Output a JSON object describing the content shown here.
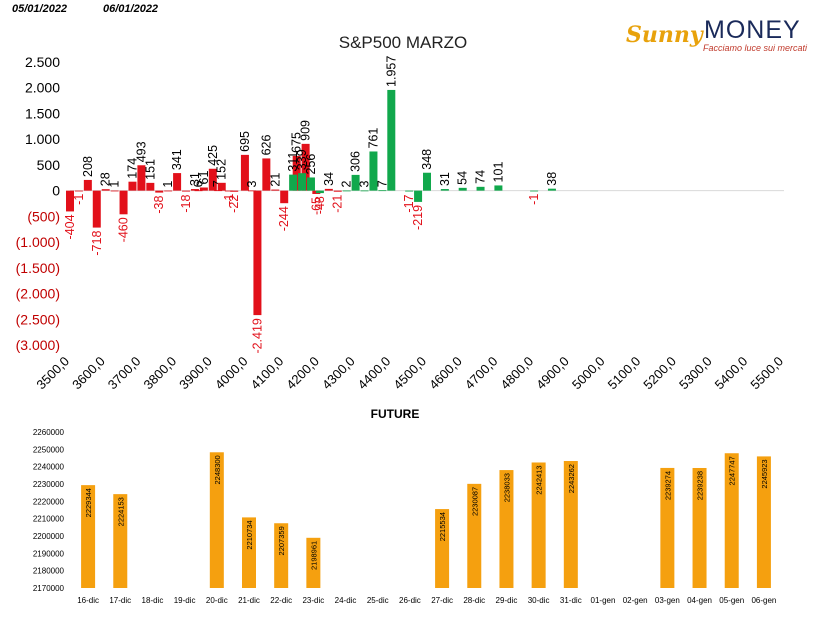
{
  "header": {
    "date_left": "05/01/2022",
    "date_right": "06/01/2022"
  },
  "logo": {
    "brand_prefix": "Sunny",
    "brand_name": "MONEY",
    "tagline": "Facciamo luce sui mercati"
  },
  "colors": {
    "positive": "#11a84c",
    "negative": "#e2101a",
    "future_bar": "#f5a00f"
  },
  "chart_data": [
    {
      "type": "bar",
      "title": "S&P500 MARZO",
      "xlabel": "",
      "ylabel": "",
      "ylim": [
        -3000,
        2500
      ],
      "yticks": [
        2500,
        2000,
        1500,
        1000,
        500,
        0,
        -500,
        -1000,
        -1500,
        -2000,
        -2500,
        -3000
      ],
      "ytick_labels": [
        "2.500",
        "2.000",
        "1.500",
        "1.000",
        "500",
        "0",
        "(500)",
        "(1.000)",
        "(1.500)",
        "(2.000)",
        "(2.500)",
        "(3.000)"
      ],
      "xlim": [
        3500,
        5500
      ],
      "xtick_labels": [
        "3500,0",
        "3600,0",
        "3700,0",
        "3800,0",
        "3900,0",
        "4000,0",
        "4100,0",
        "4200,0",
        "4300,0",
        "4400,0",
        "4500,0",
        "4600,0",
        "4700,0",
        "4800,0",
        "4900,0",
        "5000,0",
        "5100,0",
        "5200,0",
        "5300,0",
        "5400,0",
        "5500,0"
      ],
      "series": [
        {
          "color_key": "negative",
          "points": [
            {
              "x": 3500,
              "y": -404,
              "label": "-404"
            },
            {
              "x": 3525,
              "y": -1,
              "label": "-1"
            },
            {
              "x": 3550,
              "y": 208,
              "label": "208"
            },
            {
              "x": 3575,
              "y": -718,
              "label": "-718"
            },
            {
              "x": 3600,
              "y": 28,
              "label": "28"
            },
            {
              "x": 3625,
              "y": 1,
              "label": "1"
            },
            {
              "x": 3650,
              "y": -460,
              "label": "-460"
            },
            {
              "x": 3675,
              "y": 174,
              "label": "174"
            },
            {
              "x": 3700,
              "y": 493,
              "label": "493"
            },
            {
              "x": 3725,
              "y": 151,
              "label": "151"
            },
            {
              "x": 3750,
              "y": -38,
              "label": "-38"
            },
            {
              "x": 3775,
              "y": 1,
              "label": "1"
            },
            {
              "x": 3800,
              "y": 341,
              "label": "341"
            },
            {
              "x": 3825,
              "y": -18,
              "label": "-18"
            },
            {
              "x": 3850,
              "y": 31,
              "label": "31"
            },
            {
              "x": 3860,
              "y": 6,
              "label": "6"
            },
            {
              "x": 3875,
              "y": 61,
              "label": "61"
            },
            {
              "x": 3900,
              "y": 425,
              "label": "425"
            },
            {
              "x": 3915,
              "y": 7,
              "label": "7"
            },
            {
              "x": 3925,
              "y": 152,
              "label": "152"
            },
            {
              "x": 3945,
              "y": -1,
              "label": "-1"
            },
            {
              "x": 3960,
              "y": -22,
              "label": "-22"
            },
            {
              "x": 3990,
              "y": 695,
              "label": "695"
            },
            {
              "x": 4010,
              "y": 3,
              "label": "3"
            },
            {
              "x": 4025,
              "y": -2419,
              "label": "-2.419"
            },
            {
              "x": 4050,
              "y": 626,
              "label": "626"
            },
            {
              "x": 4075,
              "y": 21,
              "label": "21"
            },
            {
              "x": 4100,
              "y": -244,
              "label": "-244"
            },
            {
              "x": 4135,
              "y": 675,
              "label": "675"
            },
            {
              "x": 4160,
              "y": 909,
              "label": "909"
            },
            {
              "x": 4190,
              "y": -65,
              "label": "-65"
            },
            {
              "x": 4225,
              "y": 34,
              "label": "34"
            },
            {
              "x": 4250,
              "y": -21,
              "label": "-21"
            }
          ]
        },
        {
          "color_key": "positive",
          "points": [
            {
              "x": 4125,
              "y": 311,
              "label": "311"
            },
            {
              "x": 4150,
              "y": 339,
              "label": "339"
            },
            {
              "x": 4175,
              "y": 256,
              "label": "256"
            },
            {
              "x": 4200,
              "y": -48,
              "label": "-48"
            },
            {
              "x": 4275,
              "y": 2,
              "label": "2"
            },
            {
              "x": 4300,
              "y": 306,
              "label": "306"
            },
            {
              "x": 4325,
              "y": 3,
              "label": "3"
            },
            {
              "x": 4350,
              "y": 761,
              "label": "761"
            },
            {
              "x": 4375,
              "y": 7,
              "label": "7"
            },
            {
              "x": 4400,
              "y": 1957,
              "label": "1.957"
            },
            {
              "x": 4450,
              "y": -17,
              "label": "-17"
            },
            {
              "x": 4475,
              "y": -219,
              "label": "-219"
            },
            {
              "x": 4500,
              "y": 348,
              "label": "348"
            },
            {
              "x": 4550,
              "y": 31,
              "label": "31"
            },
            {
              "x": 4600,
              "y": 54,
              "label": "54"
            },
            {
              "x": 4650,
              "y": 74,
              "label": "74"
            },
            {
              "x": 4700,
              "y": 101,
              "label": "101"
            },
            {
              "x": 4800,
              "y": -1,
              "label": "-1"
            },
            {
              "x": 4850,
              "y": 38,
              "label": "38"
            }
          ]
        }
      ]
    },
    {
      "type": "bar",
      "title": "FUTURE",
      "xlabel": "",
      "ylabel": "",
      "ylim": [
        2170000,
        2260000
      ],
      "yticks": [
        2260000,
        2250000,
        2240000,
        2230000,
        2220000,
        2210000,
        2200000,
        2190000,
        2180000,
        2170000
      ],
      "ytick_labels": [
        "2260000",
        "2250000",
        "2240000",
        "2230000",
        "2220000",
        "2210000",
        "2200000",
        "2190000",
        "2180000",
        "2170000"
      ],
      "categories": [
        "16-dic",
        "17-dic",
        "18-dic",
        "19-dic",
        "20-dic",
        "21-dic",
        "22-dic",
        "23-dic",
        "24-dic",
        "25-dic",
        "26-dic",
        "27-dic",
        "28-dic",
        "29-dic",
        "30-dic",
        "31-dic",
        "01-gen",
        "02-gen",
        "03-gen",
        "04-gen",
        "05-gen",
        "06-gen"
      ],
      "values": [
        2229344,
        2224153,
        null,
        null,
        2248300,
        2210734,
        2207359,
        2198961,
        null,
        null,
        null,
        2215534,
        2230087,
        2238033,
        2242413,
        2243262,
        null,
        null,
        2239274,
        2239238,
        2247747,
        2245923
      ],
      "value_labels": [
        "2229344",
        "2224153",
        "",
        "",
        "2248300",
        "2210734",
        "2207359",
        "2198961",
        "",
        "",
        "",
        "2215534",
        "2230087",
        "2238033",
        "2242413",
        "2243262",
        "",
        "",
        "2239274",
        "2239238",
        "2247747",
        "2245923"
      ]
    }
  ]
}
